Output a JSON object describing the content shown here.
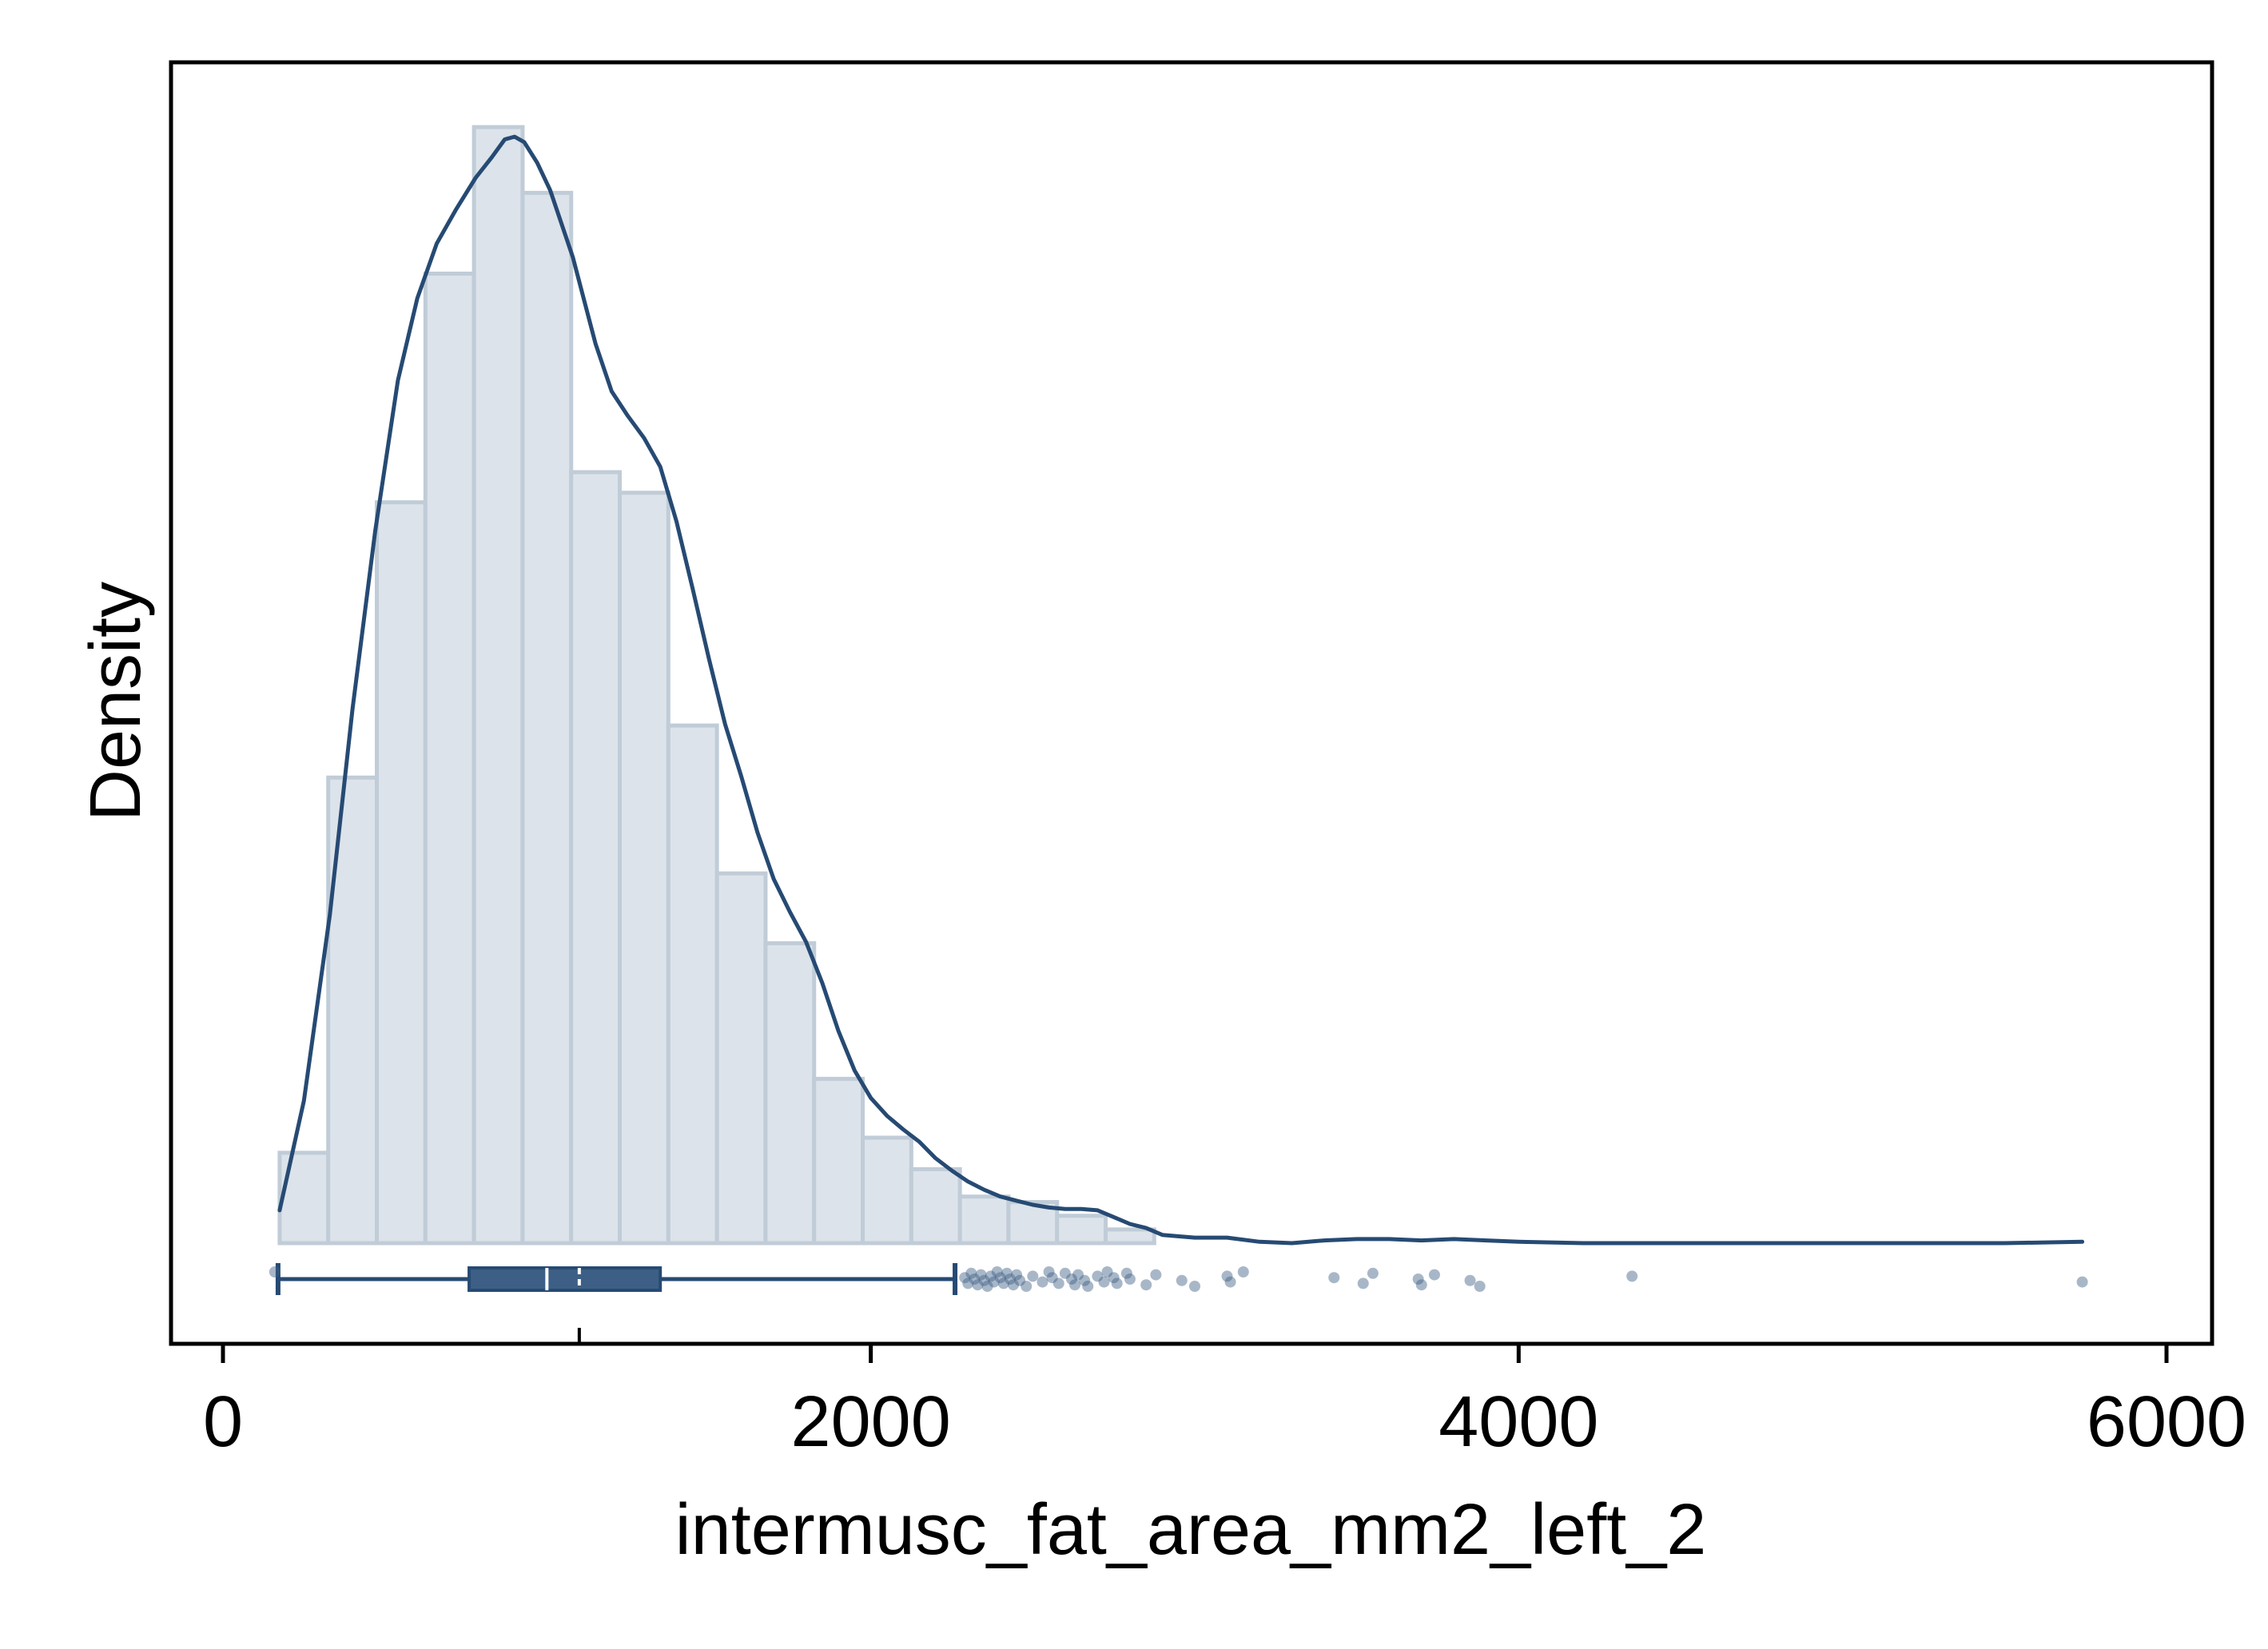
{
  "chart_data": {
    "type": "histogram",
    "title": "",
    "xlabel": "intermusc_fat_area_mm2_left_2",
    "ylabel": "Density",
    "xlim": [
      -80,
      6150
    ],
    "x_ticks": [
      0,
      2000,
      4000,
      6000
    ],
    "minor_x_ticks": [
      1100
    ],
    "y_ticks_shown": false,
    "grid": false,
    "legend": "none",
    "colors": {
      "bar_fill": "#dce3ea",
      "bar_stroke": "#c0ccd7",
      "line": "#264a73",
      "box_fill": "#3d5f86",
      "outlier": "#3d5f86"
    },
    "histogram": {
      "bin_width": 150,
      "bins": [
        {
          "x0": 175,
          "x1": 325,
          "density": 0.066
        },
        {
          "x0": 325,
          "x1": 475,
          "density": 0.34
        },
        {
          "x0": 475,
          "x1": 625,
          "density": 0.541
        },
        {
          "x0": 625,
          "x1": 775,
          "density": 0.708
        },
        {
          "x0": 775,
          "x1": 925,
          "density": 0.815
        },
        {
          "x0": 925,
          "x1": 1075,
          "density": 0.767
        },
        {
          "x0": 1075,
          "x1": 1225,
          "density": 0.563
        },
        {
          "x0": 1225,
          "x1": 1375,
          "density": 0.548
        },
        {
          "x0": 1375,
          "x1": 1525,
          "density": 0.378
        },
        {
          "x0": 1525,
          "x1": 1675,
          "density": 0.27
        },
        {
          "x0": 1675,
          "x1": 1825,
          "density": 0.219
        },
        {
          "x0": 1825,
          "x1": 1975,
          "density": 0.12
        },
        {
          "x0": 1975,
          "x1": 2125,
          "density": 0.077
        },
        {
          "x0": 2125,
          "x1": 2275,
          "density": 0.054
        },
        {
          "x0": 2275,
          "x1": 2425,
          "density": 0.034
        },
        {
          "x0": 2425,
          "x1": 2575,
          "density": 0.03
        },
        {
          "x0": 2575,
          "x1": 2725,
          "density": 0.02
        },
        {
          "x0": 2725,
          "x1": 2875,
          "density": 0.01
        }
      ]
    },
    "density_curve": {
      "x": [
        175,
        250,
        330,
        400,
        470,
        540,
        600,
        660,
        720,
        780,
        830,
        870,
        900,
        930,
        970,
        1010,
        1080,
        1150,
        1200,
        1250,
        1300,
        1350,
        1400,
        1450,
        1500,
        1550,
        1600,
        1650,
        1700,
        1750,
        1800,
        1850,
        1900,
        1950,
        2000,
        2050,
        2100,
        2150,
        2200,
        2250,
        2300,
        2350,
        2400,
        2450,
        2500,
        2550,
        2600,
        2650,
        2700,
        2750,
        2800,
        2850,
        2900,
        3000,
        3100,
        3200,
        3300,
        3400,
        3500,
        3600,
        3700,
        3800,
        3900,
        4000,
        4200,
        4500,
        5000,
        5500,
        5740
      ],
      "y": [
        0.024,
        0.104,
        0.24,
        0.39,
        0.52,
        0.63,
        0.69,
        0.73,
        0.755,
        0.778,
        0.793,
        0.806,
        0.808,
        0.804,
        0.789,
        0.769,
        0.72,
        0.657,
        0.622,
        0.604,
        0.588,
        0.567,
        0.527,
        0.478,
        0.427,
        0.379,
        0.341,
        0.3,
        0.266,
        0.242,
        0.22,
        0.19,
        0.155,
        0.126,
        0.106,
        0.093,
        0.083,
        0.074,
        0.062,
        0.053,
        0.045,
        0.039,
        0.034,
        0.031,
        0.028,
        0.026,
        0.025,
        0.025,
        0.024,
        0.019,
        0.014,
        0.011,
        0.006,
        0.004,
        0.004,
        0.001,
        0.0,
        0.002,
        0.003,
        0.003,
        0.002,
        0.003,
        0.002,
        0.001,
        0.0,
        0.0,
        0.0,
        0.0,
        0.001
      ]
    },
    "box_plot": {
      "min": 170,
      "q1": 760,
      "median": 1000,
      "mean": 1100,
      "q3": 1350,
      "upper_whisker": 2260,
      "lower_outliers": [
        160
      ],
      "outliers": [
        2290,
        2300,
        2310,
        2320,
        2330,
        2340,
        2350,
        2360,
        2370,
        2380,
        2390,
        2400,
        2410,
        2420,
        2430,
        2440,
        2450,
        2460,
        2480,
        2500,
        2530,
        2550,
        2560,
        2580,
        2600,
        2620,
        2630,
        2640,
        2660,
        2670,
        2700,
        2720,
        2730,
        2750,
        2760,
        2790,
        2800,
        2850,
        2880,
        2960,
        3000,
        3100,
        3110,
        3150,
        3430,
        3520,
        3550,
        3690,
        3700,
        3740,
        3850,
        3880,
        4350,
        5740
      ]
    }
  }
}
